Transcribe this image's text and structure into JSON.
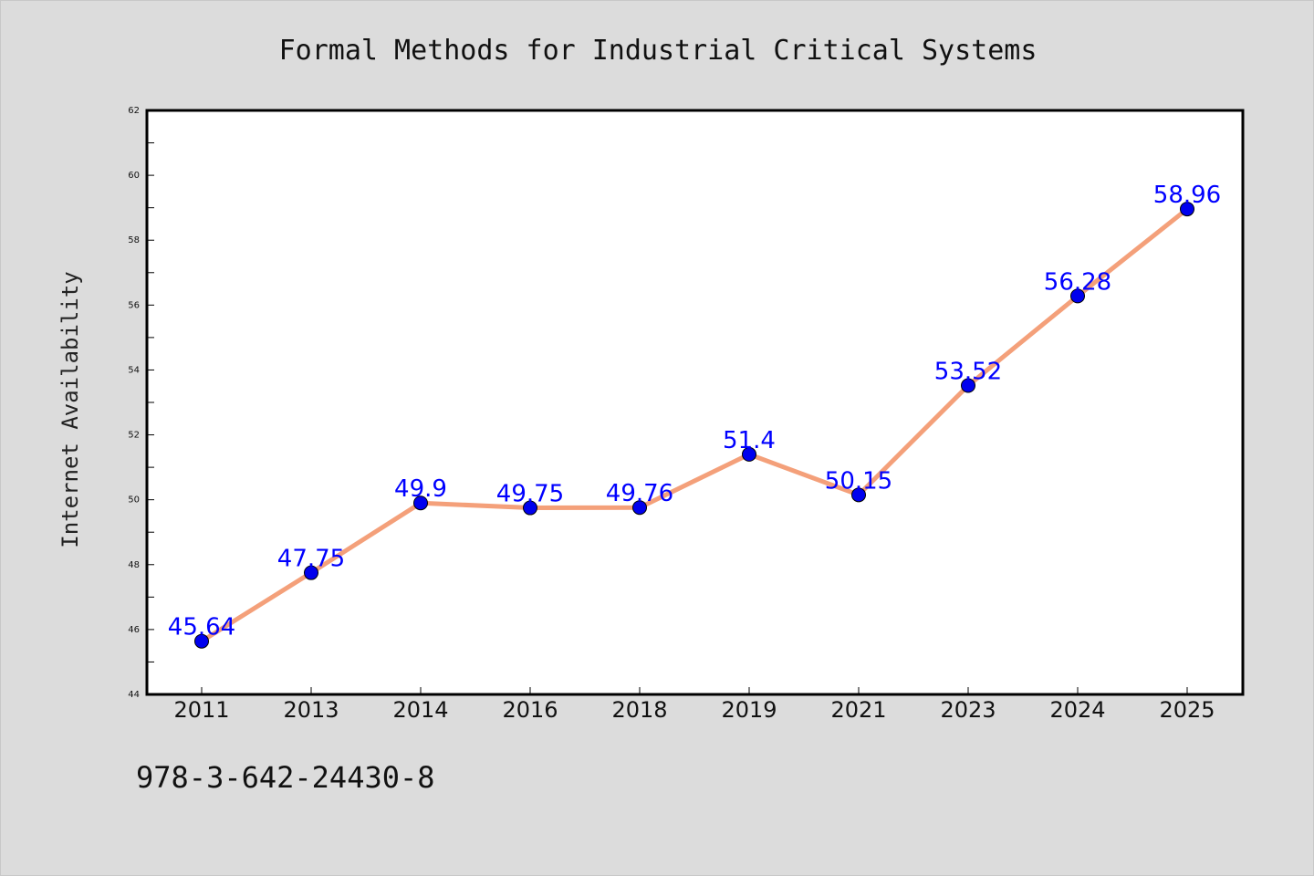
{
  "footer": {
    "isbn": "978-3-642-24430-8"
  },
  "colors": {
    "background": "#dcdcdc",
    "plot_background": "#ffffff",
    "line": "#f4a07a",
    "marker": "#0000ee",
    "data_label": "#0000ff"
  },
  "chart_data": {
    "type": "line",
    "title": "Formal Methods for Industrial Critical Systems",
    "xlabel": "",
    "ylabel": "Internet Availability",
    "categories": [
      "2011",
      "2013",
      "2014",
      "2016",
      "2018",
      "2019",
      "2021",
      "2023",
      "2024",
      "2025"
    ],
    "series": [
      {
        "values": [
          45.64,
          47.75,
          49.9,
          49.75,
          49.76,
          51.4,
          50.15,
          53.52,
          56.28,
          58.96
        ],
        "labels": [
          "45.64",
          "47.75",
          "49.9",
          "49.75",
          "49.76",
          "51.4",
          "50.15",
          "53.52",
          "56.28",
          "58.96"
        ]
      }
    ],
    "ylim": [
      44,
      62
    ],
    "yticks": [
      "44",
      "46",
      "48",
      "50",
      "52",
      "54",
      "56",
      "58",
      "60",
      "62"
    ],
    "grid": false,
    "legend": "none"
  }
}
